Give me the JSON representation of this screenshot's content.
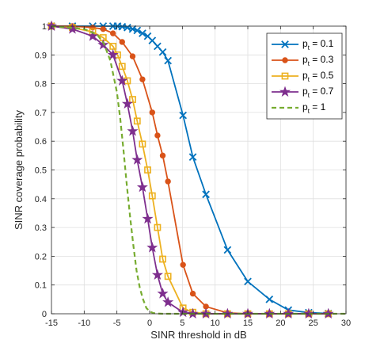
{
  "chart_data": {
    "type": "line",
    "title": "",
    "xlabel": "SINR threshold in dB",
    "ylabel": "SINR coverage probability",
    "xlim": [
      -15,
      30
    ],
    "ylim": [
      0,
      1
    ],
    "xticks": [
      -15,
      -10,
      -5,
      0,
      5,
      10,
      15,
      20,
      25,
      30
    ],
    "yticks": [
      0,
      0.1,
      0.2,
      0.3,
      0.4,
      0.5,
      0.6,
      0.7,
      0.8,
      0.9,
      1
    ],
    "xtick_labels": [
      "-15",
      "-10",
      "-5",
      "0",
      "5",
      "10",
      "15",
      "20",
      "25",
      "30"
    ],
    "ytick_labels": [
      "0",
      "0.1",
      "0.2",
      "0.3",
      "0.4",
      "0.5",
      "0.6",
      "0.7",
      "0.8",
      "0.9",
      "1"
    ],
    "grid": true,
    "legend_position": "top-right",
    "series": [
      {
        "name_base": "p",
        "name_sub": "t",
        "name_tail": " = 0.1",
        "color": "#0072BD",
        "marker": "x",
        "style": "solid",
        "x": [
          -15,
          -11.8,
          -8.7,
          -7.1,
          -5.6,
          -4.9,
          -4.2,
          -3.4,
          -2.6,
          -1.9,
          -1.1,
          -0.3,
          0.4,
          1.2,
          2.0,
          2.8,
          5.1,
          6.6,
          8.6,
          11.9,
          15.0,
          18.3,
          21.2,
          24.3,
          27.3
        ],
        "y": [
          1.0,
          1.0,
          1.0,
          1.0,
          1.0,
          1.0,
          0.998,
          0.995,
          0.99,
          0.985,
          0.975,
          0.965,
          0.95,
          0.93,
          0.91,
          0.88,
          0.69,
          0.545,
          0.415,
          0.222,
          0.112,
          0.05,
          0.013,
          0.004,
          0.001
        ]
      },
      {
        "name_base": "p",
        "name_sub": "t",
        "name_tail": " = 0.3",
        "color": "#D95319",
        "marker": "o",
        "style": "solid",
        "x": [
          -15,
          -11.8,
          -8.7,
          -7.1,
          -5.6,
          -4.2,
          -2.6,
          -1.1,
          0.4,
          1.2,
          2.0,
          2.8,
          5.1,
          6.6,
          8.6,
          11.9,
          15.0,
          18.3,
          21.2,
          24.3,
          27.3
        ],
        "y": [
          1.0,
          1.0,
          0.995,
          0.99,
          0.975,
          0.945,
          0.895,
          0.815,
          0.7,
          0.62,
          0.55,
          0.46,
          0.17,
          0.07,
          0.025,
          0.003,
          0.0,
          0.0,
          0.0,
          0.0,
          0.0
        ]
      },
      {
        "name_base": "p",
        "name_sub": "t",
        "name_tail": " = 0.5",
        "color": "#EDB120",
        "marker": "s",
        "style": "solid",
        "x": [
          -15,
          -11.8,
          -8.7,
          -7.1,
          -5.6,
          -4.9,
          -4.2,
          -3.4,
          -2.6,
          -1.9,
          -1.1,
          -0.3,
          0.4,
          1.2,
          2.0,
          2.8,
          5.1,
          6.6,
          8.6,
          11.9,
          15.0,
          18.3,
          21.2,
          24.3,
          27.3
        ],
        "y": [
          1.0,
          0.995,
          0.98,
          0.96,
          0.93,
          0.9,
          0.86,
          0.81,
          0.745,
          0.67,
          0.59,
          0.5,
          0.41,
          0.3,
          0.19,
          0.13,
          0.02,
          0.005,
          0.0,
          0.0,
          0.0,
          0.0,
          0.0,
          0.0,
          0.0
        ]
      },
      {
        "name_base": "p",
        "name_sub": "t",
        "name_tail": " = 0.7",
        "color": "#7E2F8E",
        "marker": "p",
        "style": "solid",
        "x": [
          -15,
          -11.8,
          -8.7,
          -7.1,
          -5.6,
          -4.2,
          -3.4,
          -2.6,
          -1.9,
          -1.1,
          -0.3,
          0.4,
          1.2,
          2.0,
          2.8,
          5.1,
          6.6,
          8.6,
          11.9,
          15.0,
          18.3,
          21.2,
          24.3,
          27.3
        ],
        "y": [
          1.0,
          0.99,
          0.965,
          0.935,
          0.9,
          0.81,
          0.73,
          0.635,
          0.535,
          0.44,
          0.33,
          0.23,
          0.135,
          0.07,
          0.04,
          0.005,
          0.0,
          0.0,
          0.0,
          0.0,
          0.0,
          0.0,
          0.0,
          0.0
        ]
      },
      {
        "name_base": "p",
        "name_sub": "t",
        "name_tail": " = 1",
        "color": "#77AC30",
        "marker": "none",
        "style": "dashed",
        "x": [
          -15,
          -10,
          -8,
          -7,
          -6,
          -5,
          -4.5,
          -4,
          -3.5,
          -3,
          -2.5,
          -2,
          -1.5,
          -1,
          -0.5,
          0,
          0.5,
          1,
          2,
          3,
          5,
          30
        ],
        "y": [
          1.0,
          0.99,
          0.97,
          0.94,
          0.88,
          0.77,
          0.68,
          0.57,
          0.45,
          0.34,
          0.24,
          0.15,
          0.09,
          0.05,
          0.02,
          0.008,
          0.003,
          0.001,
          0.0,
          0.0,
          0.0,
          0.0
        ]
      }
    ]
  }
}
